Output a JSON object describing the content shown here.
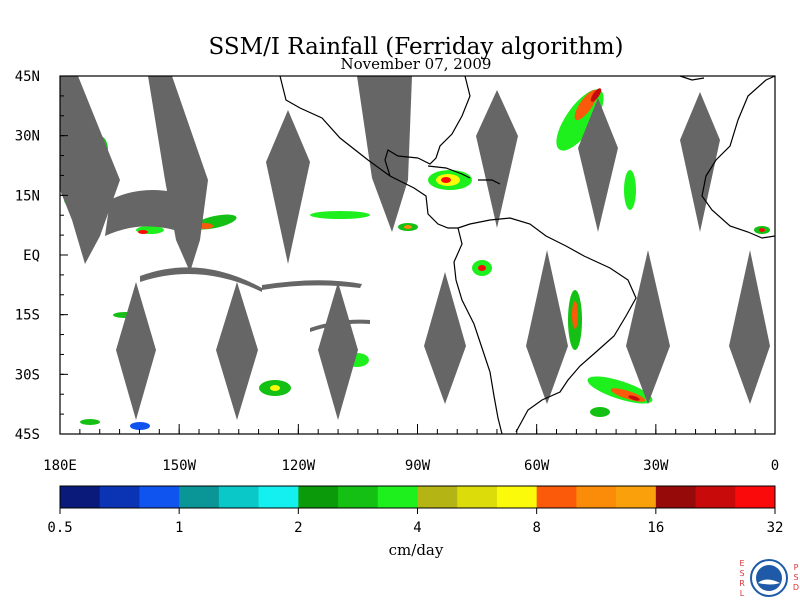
{
  "header": {
    "title": "SSM/I Rainfall (Ferriday algorithm)",
    "date": "November 07, 2009"
  },
  "map": {
    "projection": "equirectangular",
    "lon_range": [
      180,
      360
    ],
    "lat_range": [
      -45,
      45
    ],
    "lat_ticks": [
      {
        "value": 45,
        "label": "45N"
      },
      {
        "value": 30,
        "label": "30N"
      },
      {
        "value": 15,
        "label": "15N"
      },
      {
        "value": 0,
        "label": "EQ"
      },
      {
        "value": -15,
        "label": "15S"
      },
      {
        "value": -30,
        "label": "30S"
      },
      {
        "value": -45,
        "label": "45S"
      }
    ],
    "lon_ticks": [
      {
        "value": 180,
        "label": "180E"
      },
      {
        "value": 210,
        "label": "150W"
      },
      {
        "value": 240,
        "label": "120W"
      },
      {
        "value": 270,
        "label": "90W"
      },
      {
        "value": 300,
        "label": "60W"
      },
      {
        "value": 330,
        "label": "30W"
      },
      {
        "value": 360,
        "label": "0"
      }
    ],
    "colors": {
      "no_data_gap": "#666666",
      "coastline": "#000000"
    }
  },
  "colorbar": {
    "colors": [
      "#0a1a7a",
      "#0a34b4",
      "#1054f0",
      "#0a9696",
      "#0ac8c8",
      "#14f0f0",
      "#0a9a0a",
      "#14c014",
      "#1ef01e",
      "#b4b414",
      "#dcdc0a",
      "#fafa0a",
      "#fa5a0a",
      "#fa8c0a",
      "#faa00a",
      "#960a0a",
      "#c80a0a",
      "#fa0a0a"
    ],
    "tick_labels": [
      "0.5",
      "1",
      "2",
      "4",
      "8",
      "16",
      "32"
    ],
    "unit": "cm/day"
  },
  "logo": {
    "name": "noaa-esrl-psd-logo",
    "left_letters": [
      "E",
      "S",
      "R",
      "L"
    ],
    "right_letters": [
      "P",
      "S",
      "D"
    ]
  }
}
